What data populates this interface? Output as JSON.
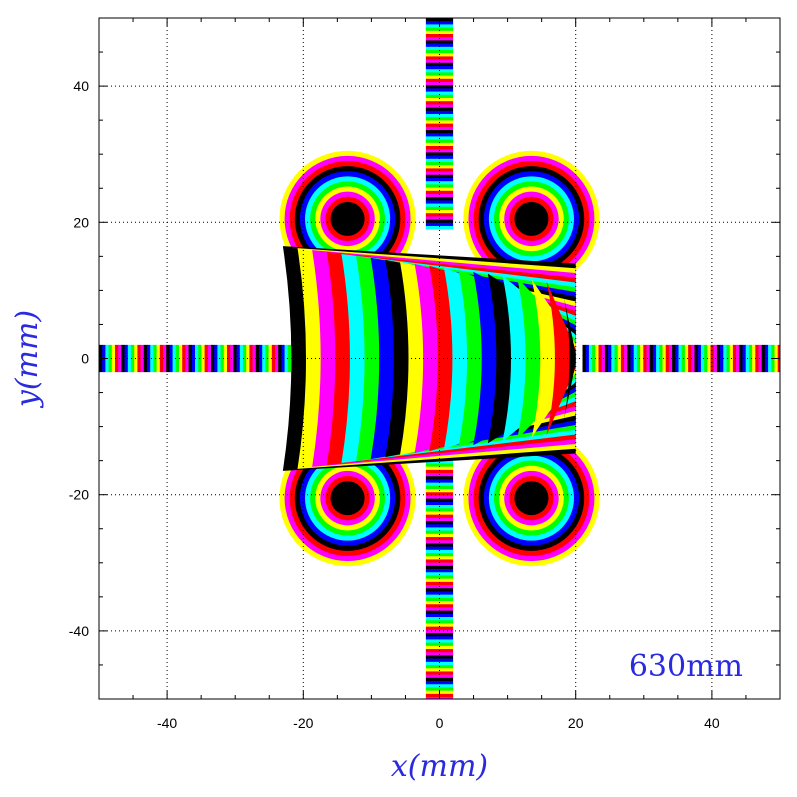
{
  "chart_data": {
    "type": "heatmap",
    "title": "",
    "xlabel": "x(mm)",
    "ylabel": "y(mm)",
    "xlim": [
      -50,
      50
    ],
    "ylim": [
      -50,
      50
    ],
    "x_ticks": [
      -40,
      -20,
      0,
      20,
      40
    ],
    "y_ticks": [
      -40,
      -20,
      0,
      20,
      40
    ],
    "x_tick_labels": [
      "-40",
      "-20",
      "0",
      "20",
      "40"
    ],
    "y_tick_labels": [
      "-40",
      "-20",
      "0",
      "20",
      "40"
    ],
    "grid": true,
    "grid_style": "dotted",
    "annotation": "630mm",
    "annotation_position": "bottom-right",
    "colormap": [
      "#000000",
      "#0000ff",
      "#00ffff",
      "#00ff00",
      "#ffff00",
      "#ff0000",
      "#ff00ff"
    ],
    "regions": [
      {
        "name": "ring",
        "center": [
          -13.5,
          20.5
        ],
        "inner_radius": 2.5,
        "outer_radius": 10
      },
      {
        "name": "ring",
        "center": [
          13.5,
          20.5
        ],
        "inner_radius": 2.5,
        "outer_radius": 10
      },
      {
        "name": "ring",
        "center": [
          -13.5,
          -20.5
        ],
        "inner_radius": 2.5,
        "outer_radius": 10
      },
      {
        "name": "ring",
        "center": [
          13.5,
          -20.5
        ],
        "inner_radius": 2.5,
        "outer_radius": 10
      },
      {
        "name": "crescent",
        "x_range": [
          -23,
          20
        ],
        "y_range": [
          -16.5,
          16.5
        ]
      },
      {
        "name": "left-strip",
        "x_range": [
          -50,
          -21
        ],
        "y_range": [
          -2,
          2
        ]
      },
      {
        "name": "right-strip",
        "x_range": [
          21,
          50
        ],
        "y_range": [
          -2,
          2
        ]
      },
      {
        "name": "top-strip",
        "x_range": [
          -2,
          2
        ],
        "y_range": [
          19,
          50
        ]
      },
      {
        "name": "bottom-strip",
        "x_range": [
          -2,
          2
        ],
        "y_range": [
          -50,
          -14
        ]
      }
    ]
  }
}
